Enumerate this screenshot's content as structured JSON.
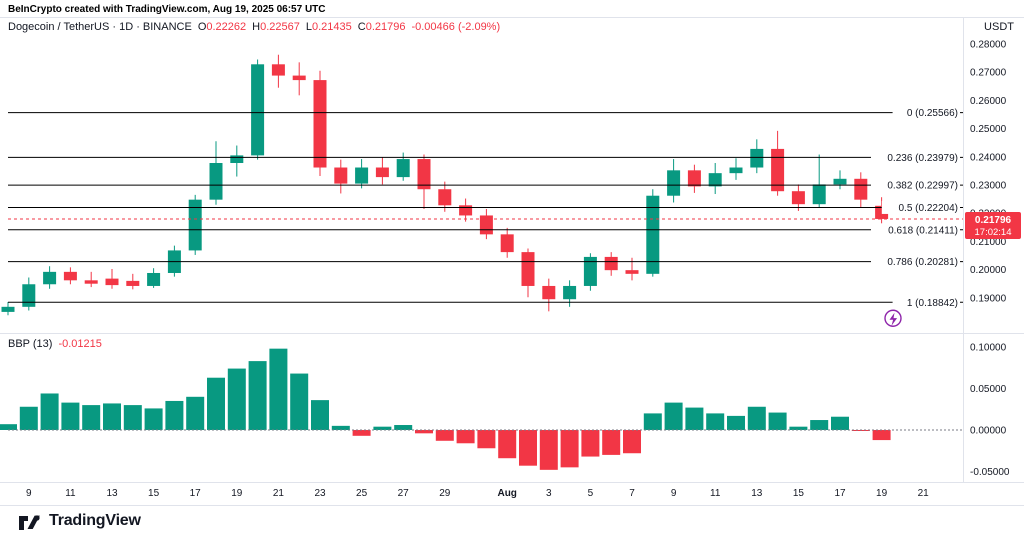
{
  "attribution": "BeInCrypto created with TradingView.com, Aug 19, 2025 06:57 UTC",
  "header": {
    "symbol_line": "Dogecoin / TetherUS · 1D · BINANCE",
    "ohlc": [
      {
        "k": "O",
        "v": "0.22262"
      },
      {
        "k": "H",
        "v": "0.22567"
      },
      {
        "k": "L",
        "v": "0.21435"
      },
      {
        "k": "C",
        "v": "0.21796"
      }
    ],
    "change": "-0.00466 (-2.09%)",
    "currency": "USDT"
  },
  "indicator": {
    "name": "BBP (13)",
    "value": "-0.01215"
  },
  "footer": {
    "logo_text": "TradingView"
  },
  "colors": {
    "up": "#089981",
    "down": "#f23645",
    "text": "#131722",
    "muted": "#787b86",
    "grid": "#e0e3eb",
    "fib_line": "#000000",
    "badge": "#f23645",
    "fib_icon": "#8e24aa"
  },
  "chart_data": {
    "type": "candlestick+histogram",
    "title": "Dogecoin / TetherUS 1D BINANCE with Fibonacci retracement and Bull Bear Power (13)",
    "price_axis_ticks": [
      "0.28000",
      "0.27000",
      "0.26000",
      "0.25000",
      "0.24000",
      "0.23000",
      "0.22000",
      "0.21000",
      "0.20000",
      "0.19000"
    ],
    "price_axis_tick_values": [
      0.28,
      0.27,
      0.26,
      0.25,
      0.24,
      0.23,
      0.22,
      0.21,
      0.2,
      0.19
    ],
    "bbp_axis_ticks": [
      "0.10000",
      "0.05000",
      "0.00000",
      "-0.05000"
    ],
    "bbp_axis_tick_values": [
      0.1,
      0.05,
      0.0,
      -0.05
    ],
    "fib_retracement": [
      {
        "level": "0",
        "price": 0.25566,
        "label": "0 (0.25566)"
      },
      {
        "level": "0.236",
        "price": 0.23979,
        "label": "0.236 (0.23979)"
      },
      {
        "level": "0.382",
        "price": 0.22997,
        "label": "0.382 (0.22997)"
      },
      {
        "level": "0.5",
        "price": 0.22204,
        "label": "0.5 (0.22204)"
      },
      {
        "level": "0.618",
        "price": 0.21411,
        "label": "0.618 (0.21411)"
      },
      {
        "level": "0.786",
        "price": 0.20281,
        "label": "0.786 (0.20281)"
      },
      {
        "level": "1",
        "price": 0.18842,
        "label": "1 (0.18842)"
      }
    ],
    "last_price": 0.21796,
    "last_price_label": "0.21796",
    "countdown": "17:02:14",
    "x_ticks": [
      {
        "label": "9",
        "index": 1
      },
      {
        "label": "11",
        "index": 3
      },
      {
        "label": "13",
        "index": 5
      },
      {
        "label": "15",
        "index": 7
      },
      {
        "label": "17",
        "index": 9
      },
      {
        "label": "19",
        "index": 11
      },
      {
        "label": "21",
        "index": 13
      },
      {
        "label": "23",
        "index": 15
      },
      {
        "label": "25",
        "index": 17
      },
      {
        "label": "27",
        "index": 19
      },
      {
        "label": "29",
        "index": 21
      },
      {
        "label": "Aug",
        "index": 24,
        "bold": true
      },
      {
        "label": "3",
        "index": 26
      },
      {
        "label": "5",
        "index": 28
      },
      {
        "label": "7",
        "index": 30
      },
      {
        "label": "9",
        "index": 32
      },
      {
        "label": "11",
        "index": 34
      },
      {
        "label": "13",
        "index": 36
      },
      {
        "label": "15",
        "index": 38
      },
      {
        "label": "17",
        "index": 40
      },
      {
        "label": "19",
        "index": 42
      },
      {
        "label": "21",
        "index": 44
      }
    ],
    "candles": [
      {
        "d": "Jul 8",
        "o": 0.185,
        "h": 0.1885,
        "l": 0.1838,
        "c": 0.1868
      },
      {
        "d": "Jul 9",
        "o": 0.1868,
        "h": 0.1972,
        "l": 0.1855,
        "c": 0.1948
      },
      {
        "d": "Jul 10",
        "o": 0.1948,
        "h": 0.2012,
        "l": 0.1932,
        "c": 0.1992
      },
      {
        "d": "Jul 11",
        "o": 0.1992,
        "h": 0.2008,
        "l": 0.1948,
        "c": 0.1962
      },
      {
        "d": "Jul 12",
        "o": 0.1962,
        "h": 0.1992,
        "l": 0.1938,
        "c": 0.195
      },
      {
        "d": "Jul 13",
        "o": 0.1968,
        "h": 0.2002,
        "l": 0.1932,
        "c": 0.1945
      },
      {
        "d": "Jul 14",
        "o": 0.196,
        "h": 0.1985,
        "l": 0.193,
        "c": 0.1942
      },
      {
        "d": "Jul 15",
        "o": 0.1942,
        "h": 0.2005,
        "l": 0.1935,
        "c": 0.1988
      },
      {
        "d": "Jul 16",
        "o": 0.1988,
        "h": 0.2085,
        "l": 0.1975,
        "c": 0.2068
      },
      {
        "d": "Jul 17",
        "o": 0.2068,
        "h": 0.2265,
        "l": 0.2052,
        "c": 0.2248
      },
      {
        "d": "Jul 18",
        "o": 0.2248,
        "h": 0.2455,
        "l": 0.223,
        "c": 0.2378
      },
      {
        "d": "Jul 19",
        "o": 0.2378,
        "h": 0.244,
        "l": 0.233,
        "c": 0.2405
      },
      {
        "d": "Jul 20",
        "o": 0.2405,
        "h": 0.2745,
        "l": 0.239,
        "c": 0.2728
      },
      {
        "d": "Jul 21",
        "o": 0.2728,
        "h": 0.2762,
        "l": 0.2645,
        "c": 0.2688
      },
      {
        "d": "Jul 22",
        "o": 0.2688,
        "h": 0.2735,
        "l": 0.2618,
        "c": 0.2672
      },
      {
        "d": "Jul 23",
        "o": 0.2672,
        "h": 0.2705,
        "l": 0.2332,
        "c": 0.2362
      },
      {
        "d": "Jul 24",
        "o": 0.2362,
        "h": 0.239,
        "l": 0.227,
        "c": 0.2305
      },
      {
        "d": "Jul 25",
        "o": 0.2305,
        "h": 0.2392,
        "l": 0.2288,
        "c": 0.2362
      },
      {
        "d": "Jul 26",
        "o": 0.2362,
        "h": 0.2398,
        "l": 0.2302,
        "c": 0.2328
      },
      {
        "d": "Jul 27",
        "o": 0.2328,
        "h": 0.2415,
        "l": 0.2315,
        "c": 0.2392
      },
      {
        "d": "Jul 28",
        "o": 0.2392,
        "h": 0.2408,
        "l": 0.2215,
        "c": 0.2285
      },
      {
        "d": "Jul 29",
        "o": 0.2285,
        "h": 0.2312,
        "l": 0.2205,
        "c": 0.2228
      },
      {
        "d": "Jul 30",
        "o": 0.2228,
        "h": 0.2252,
        "l": 0.217,
        "c": 0.2192
      },
      {
        "d": "Jul 31",
        "o": 0.2192,
        "h": 0.2215,
        "l": 0.2108,
        "c": 0.2125
      },
      {
        "d": "Aug 1",
        "o": 0.2125,
        "h": 0.2148,
        "l": 0.2042,
        "c": 0.2062
      },
      {
        "d": "Aug 2",
        "o": 0.2062,
        "h": 0.2075,
        "l": 0.1902,
        "c": 0.1942
      },
      {
        "d": "Aug 3",
        "o": 0.1942,
        "h": 0.1968,
        "l": 0.1852,
        "c": 0.1895
      },
      {
        "d": "Aug 4",
        "o": 0.1895,
        "h": 0.1962,
        "l": 0.1868,
        "c": 0.1942
      },
      {
        "d": "Aug 5",
        "o": 0.1942,
        "h": 0.2058,
        "l": 0.1925,
        "c": 0.2045
      },
      {
        "d": "Aug 6",
        "o": 0.2045,
        "h": 0.2062,
        "l": 0.1978,
        "c": 0.1998
      },
      {
        "d": "Aug 7",
        "o": 0.1998,
        "h": 0.2042,
        "l": 0.1962,
        "c": 0.1985
      },
      {
        "d": "Aug 8",
        "o": 0.1985,
        "h": 0.2285,
        "l": 0.1975,
        "c": 0.2262
      },
      {
        "d": "Aug 9",
        "o": 0.2262,
        "h": 0.2392,
        "l": 0.2238,
        "c": 0.2352
      },
      {
        "d": "Aug 10",
        "o": 0.2352,
        "h": 0.2372,
        "l": 0.2272,
        "c": 0.2295
      },
      {
        "d": "Aug 11",
        "o": 0.2295,
        "h": 0.2378,
        "l": 0.2268,
        "c": 0.2342
      },
      {
        "d": "Aug 12",
        "o": 0.2342,
        "h": 0.2395,
        "l": 0.2318,
        "c": 0.2362
      },
      {
        "d": "Aug 13",
        "o": 0.2362,
        "h": 0.2462,
        "l": 0.2342,
        "c": 0.2428
      },
      {
        "d": "Aug 14",
        "o": 0.2428,
        "h": 0.2492,
        "l": 0.2262,
        "c": 0.2278
      },
      {
        "d": "Aug 15",
        "o": 0.2278,
        "h": 0.2302,
        "l": 0.2208,
        "c": 0.2232
      },
      {
        "d": "Aug 16",
        "o": 0.2232,
        "h": 0.2408,
        "l": 0.2222,
        "c": 0.2302
      },
      {
        "d": "Aug 17",
        "o": 0.2302,
        "h": 0.2352,
        "l": 0.2285,
        "c": 0.2322
      },
      {
        "d": "Aug 18",
        "o": 0.2322,
        "h": 0.2345,
        "l": 0.2222,
        "c": 0.2248
      },
      {
        "d": "Aug 19",
        "o": 0.22262,
        "h": 0.22567,
        "l": 0.21435,
        "c": 0.21796
      }
    ],
    "bbp_values": [
      0.007,
      0.028,
      0.044,
      0.033,
      0.03,
      0.032,
      0.03,
      0.026,
      0.035,
      0.04,
      0.063,
      0.074,
      0.083,
      0.098,
      0.068,
      0.036,
      0.005,
      -0.007,
      0.004,
      0.006,
      -0.004,
      -0.013,
      -0.016,
      -0.022,
      -0.034,
      -0.043,
      -0.048,
      -0.045,
      -0.032,
      -0.03,
      -0.028,
      0.02,
      0.033,
      0.027,
      0.02,
      0.017,
      0.028,
      0.021,
      0.004,
      0.012,
      0.016,
      -0.001,
      -0.01215
    ]
  }
}
